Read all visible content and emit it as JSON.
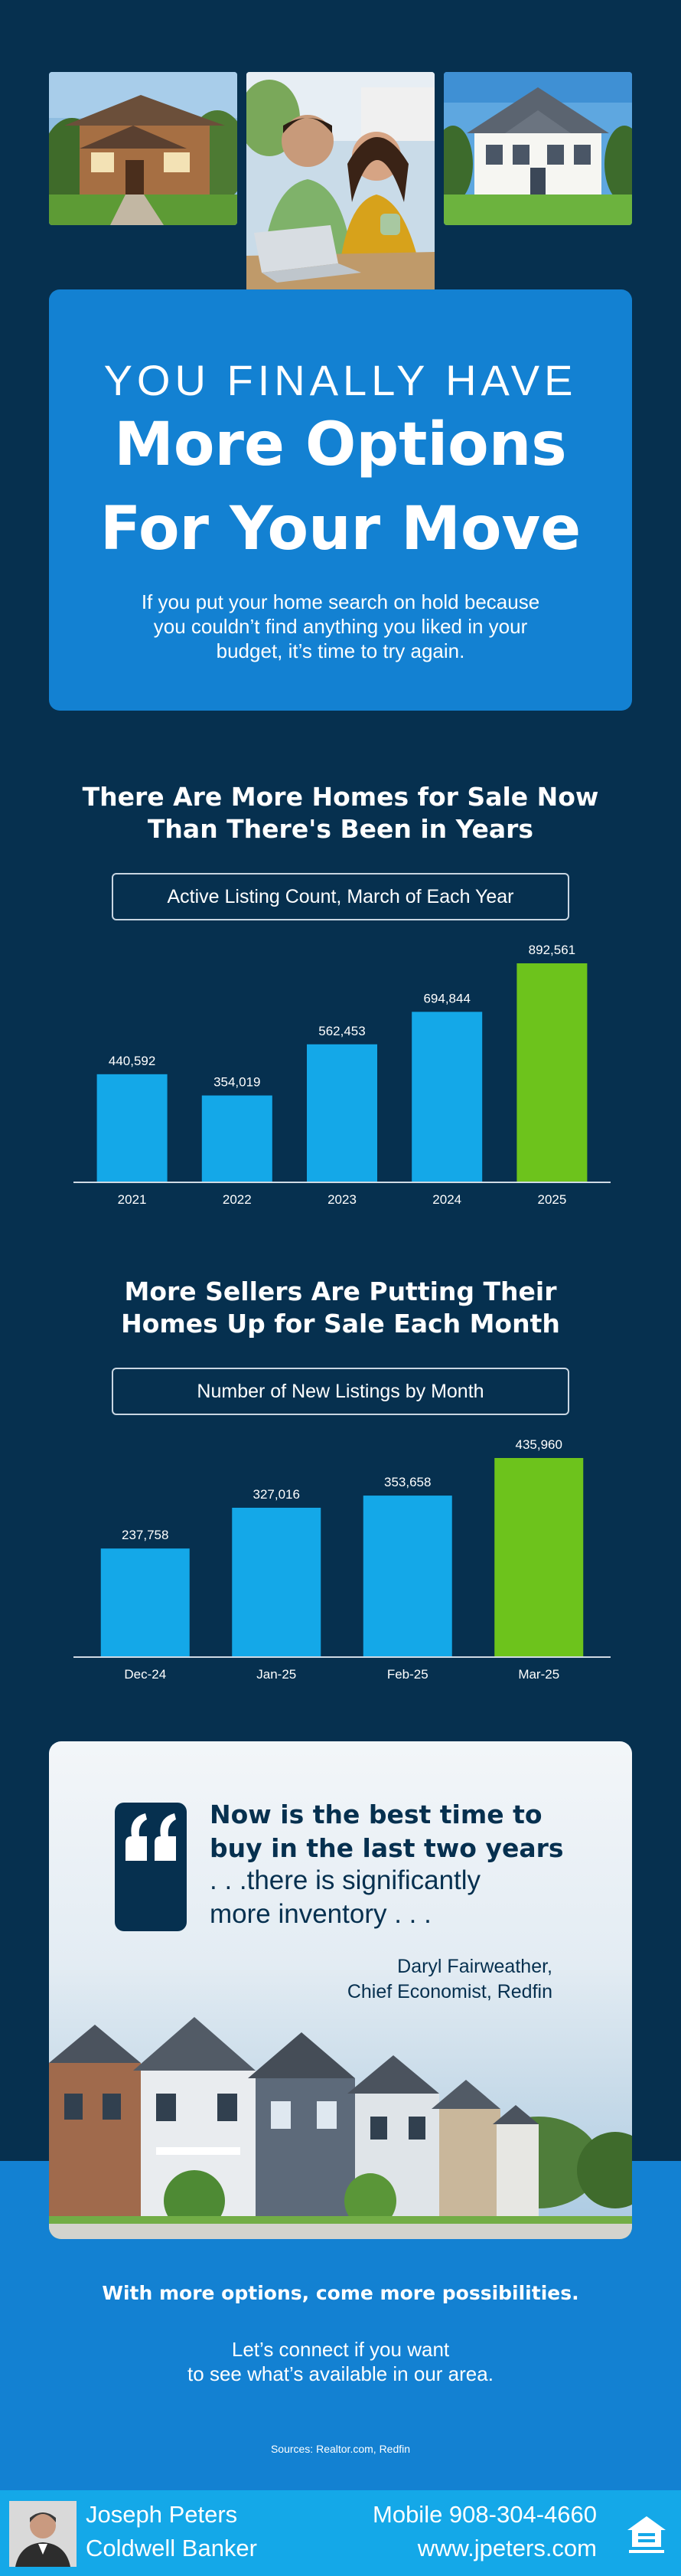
{
  "title_card": {
    "eyebrow": "YOU FINALLY HAVE",
    "line1": "More Options",
    "line2": "For Your Move",
    "body": "If you put your home search on hold because you couldn’t find anything you liked in your budget, it’s time to try again."
  },
  "section1": {
    "heading_line1": "There Are More Homes for Sale Now",
    "heading_line2": "Than There's Been in Years",
    "chart_label": "Active Listing Count, March of Each Year"
  },
  "section2": {
    "heading_line1": "More Sellers Are Putting Their",
    "heading_line2": "Homes Up for Sale Each Month",
    "chart_label": "Number of New Listings by Month"
  },
  "chart_data": [
    {
      "type": "bar",
      "title": "Active Listing Count, March of Each Year",
      "categories": [
        "2021",
        "2022",
        "2023",
        "2024",
        "2025"
      ],
      "values": [
        440592,
        354019,
        562453,
        694844,
        892561
      ],
      "value_labels": [
        "440,592",
        "354,019",
        "562,453",
        "694,844",
        "892,561"
      ],
      "ylim": [
        0,
        892561
      ],
      "grid": false,
      "colors": [
        "#14a8e8",
        "#14a8e8",
        "#14a8e8",
        "#14a8e8",
        "#6dc31c"
      ]
    },
    {
      "type": "bar",
      "title": "Number of New Listings by Month",
      "categories": [
        "Dec-24",
        "Jan-25",
        "Feb-25",
        "Mar-25"
      ],
      "values": [
        237758,
        327016,
        353658,
        435960
      ],
      "value_labels": [
        "237,758",
        "327,016",
        "353,658",
        "435,960"
      ],
      "ylim": [
        0,
        435960
      ],
      "grid": false,
      "colors": [
        "#14a8e8",
        "#14a8e8",
        "#14a8e8",
        "#6dc31c"
      ]
    }
  ],
  "quote": {
    "headline_line1": "Now is the best time to",
    "headline_line2": "buy in the last two years",
    "text_line1": ". . .there is significantly",
    "text_line2": "more inventory . . .",
    "author_name": "Daryl Fairweather,",
    "author_title": "Chief Economist, Redfin"
  },
  "closing": {
    "strong": "With more options, come more possibilities.",
    "body_line1": "Let’s connect if you want",
    "body_line2": "to see what’s available in our area.",
    "sources": "Sources: Realtor.com, Redfin"
  },
  "footer": {
    "agent_name": "Joseph Peters",
    "agent_company": "Coldwell Banker",
    "phone": "Mobile 908-304-4660",
    "website": "www.jpeters.com"
  },
  "colors": {
    "background": "#06304f",
    "accent_blue": "#1381d2",
    "bar_blue": "#14a8e8",
    "highlight_green": "#6dc31c"
  },
  "icons": [
    "quote-mark-icon",
    "equal-housing-opportunity-icon"
  ]
}
